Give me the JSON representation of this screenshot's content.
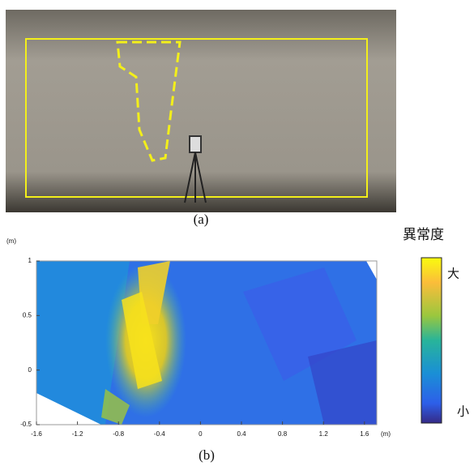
{
  "figure_a": {
    "label": "(a)"
  },
  "figure_b": {
    "label": "(b)",
    "x_unit": "(m)",
    "y_unit": "(m)",
    "xlim": [
      -1.6,
      1.72
    ],
    "ylim": [
      -0.5,
      1
    ],
    "xticks": [
      -1.6,
      -1.2,
      -0.8,
      -0.4,
      0,
      0.4,
      0.8,
      1.2,
      1.6
    ],
    "yticks": [
      -0.5,
      0,
      0.5,
      1
    ]
  },
  "colorbar": {
    "title": "異常度",
    "high": "大",
    "low": "小"
  }
}
